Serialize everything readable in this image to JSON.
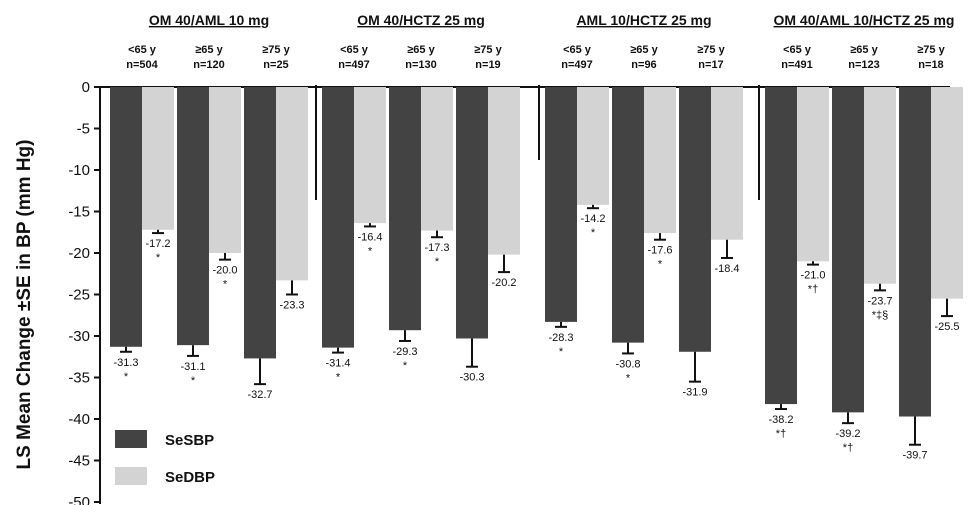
{
  "chart_data": {
    "type": "bar",
    "ylabel": "LS Mean Change ±SE in BP (mm Hg)",
    "ylim": [
      -50,
      0
    ],
    "yticks": [
      0,
      -5,
      -10,
      -15,
      -20,
      -25,
      -30,
      -35,
      -40,
      -45,
      -50
    ],
    "colors": {
      "SeSBP": "#434343",
      "SeDBP": "#d3d3d3"
    },
    "legend": {
      "placement": "bottom-left",
      "entries": [
        "SeSBP",
        "SeDBP"
      ]
    },
    "groups": [
      {
        "title": "OM 40/AML 10 mg",
        "subgroups": [
          {
            "age": "<65 y",
            "n": "n=504",
            "sbp": {
              "value": -31.3,
              "se": 0.6,
              "label": "-31.3",
              "sig": "*"
            },
            "dbp": {
              "value": -17.2,
              "se": 0.4,
              "label": "-17.2",
              "sig": "*"
            }
          },
          {
            "age": "≥65 y",
            "n": "n=120",
            "sbp": {
              "value": -31.1,
              "se": 1.3,
              "label": "-31.1",
              "sig": "*"
            },
            "dbp": {
              "value": -20.0,
              "se": 0.8,
              "label": "-20.0",
              "sig": "*"
            }
          },
          {
            "age": "≥75 y",
            "n": "n=25",
            "sbp": {
              "value": -32.7,
              "se": 3.1,
              "label": "-32.7",
              "sig": ""
            },
            "dbp": {
              "value": -23.3,
              "se": 1.7,
              "label": "-23.3",
              "sig": ""
            }
          }
        ]
      },
      {
        "title": "OM 40/HCTZ 25 mg",
        "subgroups": [
          {
            "age": "<65 y",
            "n": "n=497",
            "sbp": {
              "value": -31.4,
              "se": 0.6,
              "label": "-31.4",
              "sig": "*"
            },
            "dbp": {
              "value": -16.4,
              "se": 0.4,
              "label": "-16.4",
              "sig": "*"
            }
          },
          {
            "age": "≥65 y",
            "n": "n=130",
            "sbp": {
              "value": -29.3,
              "se": 1.3,
              "label": "-29.3",
              "sig": "*"
            },
            "dbp": {
              "value": -17.3,
              "se": 0.8,
              "label": "-17.3",
              "sig": "*"
            }
          },
          {
            "age": "≥75 y",
            "n": "n=19",
            "sbp": {
              "value": -30.3,
              "se": 3.4,
              "label": "-30.3",
              "sig": ""
            },
            "dbp": {
              "value": -20.2,
              "se": 2.1,
              "label": "-20.2",
              "sig": ""
            }
          }
        ]
      },
      {
        "title": "AML 10/HCTZ 25 mg",
        "subgroups": [
          {
            "age": "<65 y",
            "n": "n=497",
            "sbp": {
              "value": -28.3,
              "se": 0.6,
              "label": "-28.3",
              "sig": "*"
            },
            "dbp": {
              "value": -14.2,
              "se": 0.4,
              "label": "-14.2",
              "sig": "*"
            }
          },
          {
            "age": "≥65 y",
            "n": "n=96",
            "sbp": {
              "value": -30.8,
              "se": 1.3,
              "label": "-30.8",
              "sig": "*"
            },
            "dbp": {
              "value": -17.6,
              "se": 0.8,
              "label": "-17.6",
              "sig": "*"
            }
          },
          {
            "age": "≥75 y",
            "n": "n=17",
            "sbp": {
              "value": -31.9,
              "se": 3.6,
              "label": "-31.9",
              "sig": ""
            },
            "dbp": {
              "value": -18.4,
              "se": 2.2,
              "label": "-18.4",
              "sig": ""
            }
          }
        ]
      },
      {
        "title": "OM 40/AML 10/HCTZ 25 mg",
        "subgroups": [
          {
            "age": "<65 y",
            "n": "n=491",
            "sbp": {
              "value": -38.2,
              "se": 0.6,
              "label": "-38.2",
              "sig": "*†"
            },
            "dbp": {
              "value": -21.0,
              "se": 0.4,
              "label": "-21.0",
              "sig": "*†"
            }
          },
          {
            "age": "≥65 y",
            "n": "n=123",
            "sbp": {
              "value": -39.2,
              "se": 1.3,
              "label": "-39.2",
              "sig": "*†"
            },
            "dbp": {
              "value": -23.7,
              "se": 0.8,
              "label": "-23.7",
              "sig": "*‡§"
            }
          },
          {
            "age": "≥75 y",
            "n": "n=18",
            "sbp": {
              "value": -39.7,
              "se": 3.4,
              "label": "-39.7",
              "sig": ""
            },
            "dbp": {
              "value": -25.5,
              "se": 2.1,
              "label": "-25.5",
              "sig": ""
            }
          }
        ]
      }
    ]
  }
}
